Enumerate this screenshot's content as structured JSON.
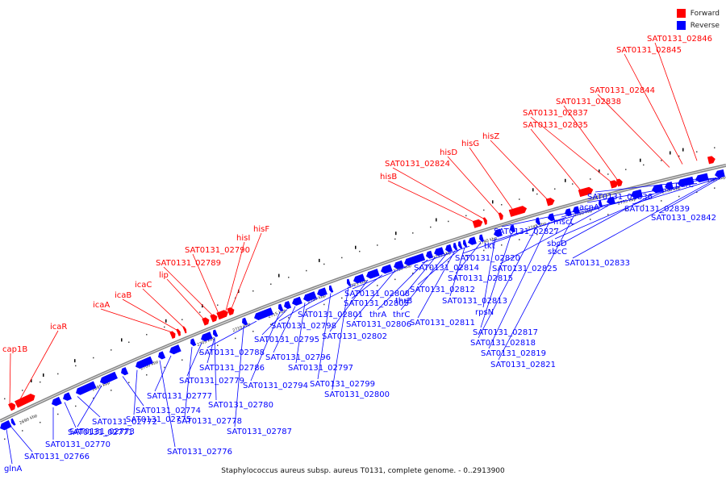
{
  "caption": "Staphylococcus aureus subsp. aureus T0131, complete genome. - 0..2913900",
  "legend": {
    "forward_label": "Forward",
    "reverse_label": "Reverse",
    "forward_color": "#ff0000",
    "reverse_color": "#0000ff"
  },
  "backbone_color": "#888888",
  "ticks": [
    "2690 kbp",
    "2695 kbp",
    "2700 kbp",
    "2705 kbp",
    "2710 kbp",
    "2715 kbp",
    "2720 kbp",
    "2725 kbp",
    "2730 kbp",
    "2735 kbp",
    "2740 kbp",
    "2745 kbp",
    "2750 kbp",
    "2755 kbp",
    "2760 kbp",
    "2765 kbp"
  ],
  "forward_genes": [
    "cap1B",
    "icaR",
    "icaA",
    "icaB",
    "icaC",
    "lip",
    "SAT0131_02789",
    "SAT0131_02790",
    "hisI",
    "hisF",
    "hisB",
    "SAT0131_02824",
    "hisD",
    "hisG",
    "hisZ",
    "SAT0131_02835",
    "SAT0131_02837",
    "SAT0131_02838",
    "SAT0131_02844",
    "SAT0131_02845",
    "SAT0131_02846"
  ],
  "reverse_genes": [
    "glnA",
    "SAT0131_02766",
    "SAT0131_02770",
    "SAT0131_02771",
    "SAT0131_02772",
    "SAT0131_02773",
    "SAT0131_02774",
    "SAT0131_02775",
    "SAT0131_02776",
    "SAT0131_02777",
    "SAT0131_02778",
    "SAT0131_02779",
    "SAT0131_02780",
    "SAT0131_02786",
    "SAT0131_02787",
    "SAT0131_02788",
    "SAT0131_02794",
    "SAT0131_02795",
    "SAT0131_02796",
    "SAT0131_02797",
    "SAT0131_02798",
    "SAT0131_02799",
    "SAT0131_02800",
    "SAT0131_02801",
    "SAT0131_02802",
    "SAT0131_02805",
    "SAT0131_02806",
    "SAT0131_02808",
    "thrA",
    "thrB",
    "thrC",
    "SAT0131_02811",
    "SAT0131_02812",
    "SAT0131_02813",
    "SAT0131_02814",
    "SAT0131_02815",
    "rpsN",
    "SAT0131_02817",
    "SAT0131_02818",
    "SAT0131_02819",
    "SAT0131_02820",
    "SAT0131_02821",
    "tkt",
    "SAT0131_02825",
    "SAT0131_02827",
    "sbcC",
    "sbcD",
    "mscL",
    "acnA",
    "SAT0131_02833",
    "SAT0131_02836",
    "SAT0131_02839",
    "parE",
    "SAT0131_02842"
  ]
}
